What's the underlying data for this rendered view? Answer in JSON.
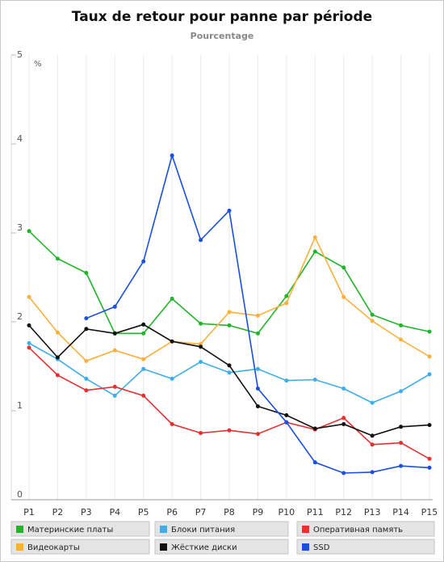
{
  "chart_data": {
    "type": "line",
    "title": "Taux de retour pour panne par période",
    "subtitle": "Pourcentage",
    "y_unit": "%",
    "categories": [
      "P1",
      "P2",
      "P3",
      "P4",
      "P5",
      "P6",
      "P7",
      "P8",
      "P9",
      "P10",
      "P11",
      "P12",
      "P13",
      "P14",
      "P15"
    ],
    "ylim": [
      0,
      5
    ],
    "yticks": [
      0,
      1,
      2,
      3,
      4,
      5
    ],
    "grid": "vertical",
    "series": [
      {
        "name": "Материнские платы",
        "color": "#22b42a",
        "values": [
          3.02,
          2.71,
          2.55,
          1.87,
          1.87,
          2.26,
          1.98,
          1.96,
          1.87,
          2.29,
          2.79,
          2.61,
          2.08,
          1.96,
          1.89
        ]
      },
      {
        "name": "Блоки питания",
        "color": "#3daee9",
        "values": [
          1.76,
          1.58,
          1.36,
          1.17,
          1.47,
          1.36,
          1.55,
          1.43,
          1.47,
          1.34,
          1.35,
          1.25,
          1.09,
          1.22,
          1.41
        ]
      },
      {
        "name": "Оперативная память",
        "color": "#e53030",
        "values": [
          1.71,
          1.4,
          1.23,
          1.27,
          1.17,
          0.85,
          0.75,
          0.78,
          0.74,
          0.87,
          0.79,
          0.92,
          0.62,
          0.64,
          0.46
        ]
      },
      {
        "name": "Видеокарты",
        "color": "#fbb03b",
        "values": [
          2.28,
          1.88,
          1.56,
          1.68,
          1.58,
          1.78,
          1.75,
          2.11,
          2.07,
          2.21,
          2.95,
          2.28,
          2.01,
          1.8,
          1.61
        ]
      },
      {
        "name": "Жёсткие диски",
        "color": "#111111",
        "values": [
          1.96,
          1.6,
          1.92,
          1.87,
          1.97,
          1.78,
          1.72,
          1.51,
          1.05,
          0.95,
          0.8,
          0.85,
          0.72,
          0.82,
          0.84
        ]
      },
      {
        "name": "SSD",
        "color": "#1a4fe0",
        "values": [
          null,
          null,
          2.04,
          2.17,
          2.68,
          3.87,
          2.92,
          3.25,
          1.25,
          0.87,
          0.42,
          0.3,
          0.31,
          0.38,
          0.36
        ]
      }
    ]
  }
}
